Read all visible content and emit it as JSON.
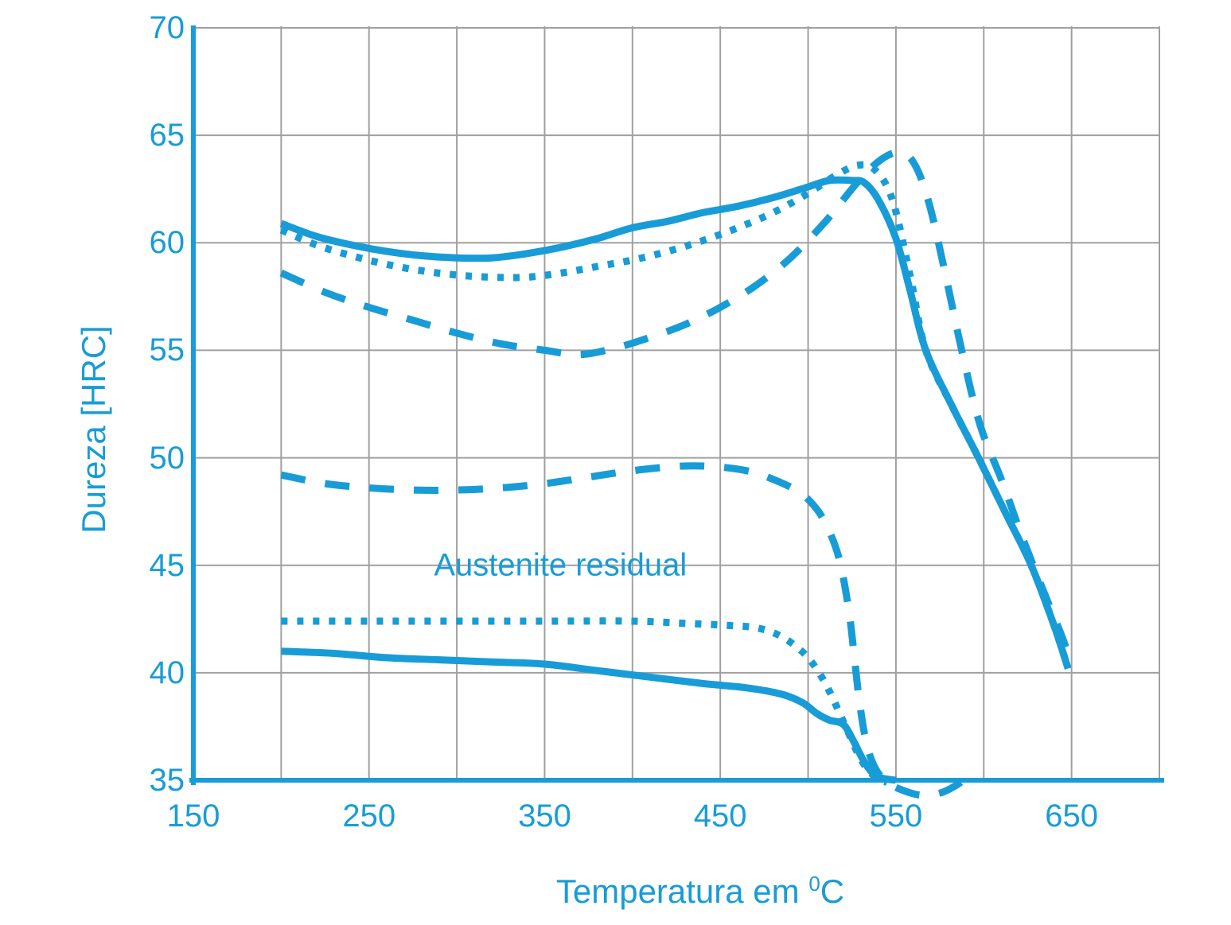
{
  "page": {
    "background": "#ffffff"
  },
  "chart_data": {
    "type": "line",
    "title": "",
    "xlabel": "Temperatura em ⁰C",
    "xlabel_parts": {
      "text": "Temperatura em ",
      "sup": "0",
      "unit": "C"
    },
    "ylabel": "Dureza [HRC]",
    "annotation": {
      "text": "Austenite residual",
      "x": 359,
      "y": 45.0
    },
    "xlim": [
      150,
      700
    ],
    "ylim": [
      35,
      70
    ],
    "x_ticks": [
      150,
      250,
      350,
      450,
      550,
      650
    ],
    "y_ticks": [
      35,
      40,
      45,
      50,
      55,
      60,
      65,
      70
    ],
    "x_grid_step": 50,
    "y_grid_step": 5,
    "grid": true,
    "legend": "none",
    "colors": {
      "accent": "#189cd7",
      "grid": "#a0a0a0",
      "background": "#ffffff"
    },
    "series": [
      {
        "name": "hardness-solid",
        "style": "solid",
        "points": [
          [
            200,
            60.9
          ],
          [
            220,
            60.3
          ],
          [
            240,
            59.9
          ],
          [
            260,
            59.6
          ],
          [
            280,
            59.4
          ],
          [
            300,
            59.3
          ],
          [
            320,
            59.3
          ],
          [
            340,
            59.5
          ],
          [
            360,
            59.8
          ],
          [
            380,
            60.2
          ],
          [
            400,
            60.7
          ],
          [
            420,
            61.0
          ],
          [
            440,
            61.4
          ],
          [
            460,
            61.7
          ],
          [
            480,
            62.1
          ],
          [
            500,
            62.6
          ],
          [
            512,
            62.9
          ],
          [
            525,
            62.9
          ],
          [
            532,
            62.8
          ],
          [
            540,
            62.0
          ],
          [
            550,
            60.2
          ],
          [
            558,
            57.8
          ],
          [
            567,
            55.0
          ],
          [
            582,
            52.4
          ],
          [
            597,
            50.0
          ],
          [
            612,
            47.5
          ],
          [
            627,
            45.0
          ],
          [
            640,
            42.2
          ],
          [
            648,
            40.2
          ]
        ]
      },
      {
        "name": "hardness-dotted",
        "style": "dotted",
        "points": [
          [
            200,
            60.6
          ],
          [
            220,
            59.9
          ],
          [
            240,
            59.4
          ],
          [
            260,
            59.0
          ],
          [
            280,
            58.7
          ],
          [
            300,
            58.5
          ],
          [
            320,
            58.4
          ],
          [
            340,
            58.4
          ],
          [
            360,
            58.6
          ],
          [
            380,
            58.9
          ],
          [
            400,
            59.2
          ],
          [
            420,
            59.6
          ],
          [
            440,
            60.1
          ],
          [
            460,
            60.7
          ],
          [
            480,
            61.4
          ],
          [
            500,
            62.3
          ],
          [
            515,
            63.1
          ],
          [
            528,
            63.6
          ],
          [
            538,
            63.4
          ],
          [
            548,
            62.0
          ],
          [
            558,
            58.5
          ],
          [
            567,
            55.0
          ],
          [
            582,
            52.4
          ],
          [
            597,
            50.0
          ],
          [
            612,
            47.5
          ],
          [
            627,
            45.0
          ],
          [
            640,
            42.2
          ],
          [
            648,
            40.2
          ]
        ]
      },
      {
        "name": "hardness-dashed",
        "style": "dashed",
        "points": [
          [
            200,
            58.6
          ],
          [
            225,
            57.7
          ],
          [
            250,
            57.0
          ],
          [
            275,
            56.4
          ],
          [
            300,
            55.8
          ],
          [
            325,
            55.3
          ],
          [
            350,
            55.0
          ],
          [
            370,
            54.8
          ],
          [
            390,
            55.1
          ],
          [
            410,
            55.6
          ],
          [
            430,
            56.2
          ],
          [
            450,
            57.0
          ],
          [
            470,
            58.0
          ],
          [
            490,
            59.3
          ],
          [
            510,
            61.0
          ],
          [
            528,
            62.8
          ],
          [
            542,
            63.9
          ],
          [
            553,
            64.2
          ],
          [
            561,
            63.6
          ],
          [
            569,
            61.8
          ],
          [
            578,
            58.6
          ],
          [
            588,
            54.8
          ],
          [
            598,
            51.5
          ],
          [
            610,
            49.0
          ],
          [
            622,
            46.3
          ],
          [
            634,
            43.8
          ],
          [
            644,
            41.8
          ],
          [
            650,
            40.4
          ]
        ]
      },
      {
        "name": "austenite-dashed",
        "style": "dashed",
        "points": [
          [
            200,
            49.2
          ],
          [
            225,
            48.8
          ],
          [
            250,
            48.6
          ],
          [
            275,
            48.5
          ],
          [
            300,
            48.5
          ],
          [
            325,
            48.6
          ],
          [
            350,
            48.8
          ],
          [
            375,
            49.1
          ],
          [
            400,
            49.4
          ],
          [
            425,
            49.6
          ],
          [
            445,
            49.6
          ],
          [
            465,
            49.4
          ],
          [
            480,
            49.0
          ],
          [
            495,
            48.4
          ],
          [
            505,
            47.6
          ],
          [
            512,
            46.6
          ],
          [
            518,
            45.2
          ],
          [
            523,
            43.0
          ],
          [
            526,
            41.0
          ],
          [
            529,
            38.8
          ],
          [
            533,
            36.8
          ],
          [
            538,
            35.6
          ],
          [
            545,
            34.9
          ],
          [
            555,
            34.5
          ],
          [
            565,
            34.3
          ],
          [
            575,
            34.4
          ],
          [
            583,
            34.7
          ],
          [
            590,
            35.1
          ],
          [
            594,
            35.4
          ]
        ]
      },
      {
        "name": "austenite-dotted",
        "style": "dotted",
        "points": [
          [
            200,
            42.4
          ],
          [
            250,
            42.4
          ],
          [
            300,
            42.4
          ],
          [
            350,
            42.4
          ],
          [
            400,
            42.4
          ],
          [
            430,
            42.3
          ],
          [
            455,
            42.2
          ],
          [
            470,
            42.1
          ],
          [
            482,
            41.8
          ],
          [
            492,
            41.3
          ],
          [
            500,
            40.7
          ],
          [
            507,
            39.9
          ],
          [
            513,
            39.0
          ],
          [
            518,
            38.1
          ],
          [
            523,
            37.2
          ],
          [
            528,
            36.3
          ],
          [
            533,
            35.6
          ],
          [
            539,
            35.1
          ],
          [
            545,
            34.9
          ]
        ]
      },
      {
        "name": "austenite-solid",
        "style": "solid",
        "points": [
          [
            200,
            41.0
          ],
          [
            230,
            40.9
          ],
          [
            260,
            40.7
          ],
          [
            290,
            40.6
          ],
          [
            320,
            40.5
          ],
          [
            350,
            40.4
          ],
          [
            380,
            40.1
          ],
          [
            410,
            39.8
          ],
          [
            440,
            39.5
          ],
          [
            465,
            39.3
          ],
          [
            485,
            39.0
          ],
          [
            497,
            38.6
          ],
          [
            505,
            38.1
          ],
          [
            512,
            37.8
          ],
          [
            520,
            37.6
          ],
          [
            526,
            36.8
          ],
          [
            531,
            36.0
          ],
          [
            536,
            35.4
          ],
          [
            542,
            35.1
          ],
          [
            550,
            35.0
          ]
        ]
      }
    ]
  }
}
